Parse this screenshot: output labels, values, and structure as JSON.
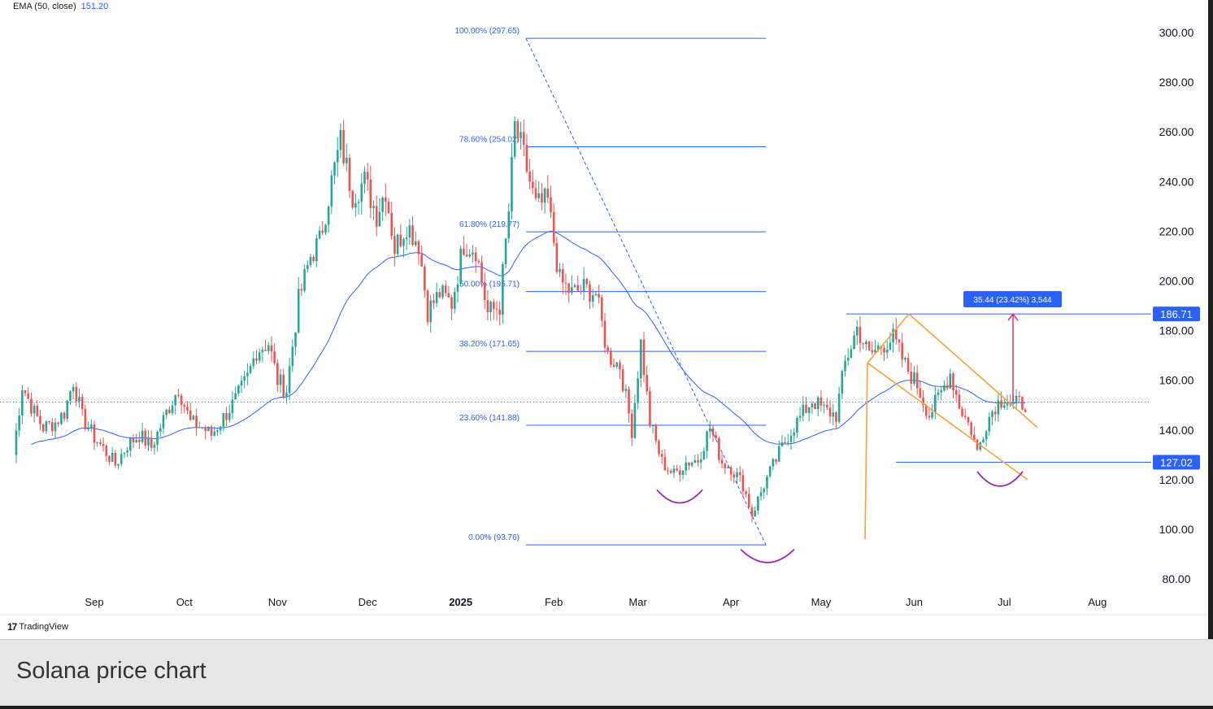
{
  "indicator": {
    "label": "EMA (50, close)",
    "value": "151.20"
  },
  "branding": {
    "logo_mark": "17",
    "logo_text": "TradingView"
  },
  "caption": "Solana price chart",
  "colors": {
    "up": "#26a69a",
    "down": "#ef5350",
    "ema": "#2962ff",
    "fib": "#2962ff",
    "channel": "#f7a23b",
    "arc": "#9c27b0",
    "measure": "#e91e63",
    "label_bg": "#2962ff"
  },
  "chart_data": {
    "type": "candlestick",
    "title": "",
    "y_ticks": [
      "300.00",
      "280.00",
      "260.00",
      "240.00",
      "220.00",
      "200.00",
      "180.00",
      "160.00",
      "140.00",
      "120.00",
      "100.00",
      "80.00"
    ],
    "x_ticks": [
      "Sep",
      "Oct",
      "Nov",
      "Dec",
      "2025",
      "Feb",
      "Mar",
      "Apr",
      "May",
      "Jun",
      "Jul",
      "Aug"
    ],
    "ylim": [
      80,
      300
    ],
    "current_price": 151.2,
    "fib_levels": [
      {
        "label": "100.00% (297.65)",
        "price": 297.65
      },
      {
        "label": "78.60% (254.02)",
        "price": 254.02
      },
      {
        "label": "61.80% (219.77)",
        "price": 219.77
      },
      {
        "label": "50.00% (195.71)",
        "price": 195.71
      },
      {
        "label": "38.20% (171.65)",
        "price": 171.65
      },
      {
        "label": "23.60% (141.88)",
        "price": 141.88
      },
      {
        "label": "0.00% (93.76)",
        "price": 93.76
      }
    ],
    "price_labels": [
      {
        "text": "186.71",
        "price": 186.71
      },
      {
        "text": "127.02",
        "price": 127.02
      }
    ],
    "measure": {
      "text": "35.44 (23.42%) 3,544",
      "from": 151.27,
      "to": 186.71
    },
    "price_path": [
      [
        "2024-08-05",
        130
      ],
      [
        "2024-08-08",
        158
      ],
      [
        "2024-08-12",
        147
      ],
      [
        "2024-08-15",
        141
      ],
      [
        "2024-08-19",
        143
      ],
      [
        "2024-08-22",
        147
      ],
      [
        "2024-08-25",
        160
      ],
      [
        "2024-08-28",
        145
      ],
      [
        "2024-09-01",
        137
      ],
      [
        "2024-09-05",
        131
      ],
      [
        "2024-09-08",
        126
      ],
      [
        "2024-09-12",
        134
      ],
      [
        "2024-09-16",
        138
      ],
      [
        "2024-09-20",
        133
      ],
      [
        "2024-09-25",
        147
      ],
      [
        "2024-09-29",
        157
      ],
      [
        "2024-10-03",
        143
      ],
      [
        "2024-10-07",
        141
      ],
      [
        "2024-10-10",
        138
      ],
      [
        "2024-10-14",
        145
      ],
      [
        "2024-10-18",
        152
      ],
      [
        "2024-10-22",
        161
      ],
      [
        "2024-10-25",
        172
      ],
      [
        "2024-10-29",
        175
      ],
      [
        "2024-11-01",
        160
      ],
      [
        "2024-11-04",
        156
      ],
      [
        "2024-11-08",
        192
      ],
      [
        "2024-11-12",
        210
      ],
      [
        "2024-11-15",
        216
      ],
      [
        "2024-11-19",
        240
      ],
      [
        "2024-11-22",
        256
      ],
      [
        "2024-11-26",
        235
      ],
      [
        "2024-11-30",
        240
      ],
      [
        "2024-12-04",
        227
      ],
      [
        "2024-12-07",
        237
      ],
      [
        "2024-12-10",
        213
      ],
      [
        "2024-12-14",
        223
      ],
      [
        "2024-12-18",
        215
      ],
      [
        "2024-12-21",
        188
      ],
      [
        "2024-12-25",
        195
      ],
      [
        "2024-12-29",
        191
      ],
      [
        "2025-01-02",
        215
      ],
      [
        "2025-01-06",
        213
      ],
      [
        "2025-01-10",
        187
      ],
      [
        "2025-01-14",
        190
      ],
      [
        "2025-01-17",
        228
      ],
      [
        "2025-01-19",
        262
      ],
      [
        "2025-01-22",
        250
      ],
      [
        "2025-01-26",
        230
      ],
      [
        "2025-01-30",
        232
      ],
      [
        "2025-02-03",
        200
      ],
      [
        "2025-02-07",
        195
      ],
      [
        "2025-02-11",
        197
      ],
      [
        "2025-02-15",
        195
      ],
      [
        "2025-02-19",
        170
      ],
      [
        "2025-02-23",
        166
      ],
      [
        "2025-02-27",
        140
      ],
      [
        "2025-03-02",
        175
      ],
      [
        "2025-03-05",
        143
      ],
      [
        "2025-03-09",
        127
      ],
      [
        "2025-03-13",
        122
      ],
      [
        "2025-03-17",
        127
      ],
      [
        "2025-03-21",
        128
      ],
      [
        "2025-03-25",
        141
      ],
      [
        "2025-03-29",
        127
      ],
      [
        "2025-04-01",
        125
      ],
      [
        "2025-04-05",
        118
      ],
      [
        "2025-04-08",
        106
      ],
      [
        "2025-04-12",
        118
      ],
      [
        "2025-04-16",
        128
      ],
      [
        "2025-04-20",
        138
      ],
      [
        "2025-04-24",
        145
      ],
      [
        "2025-04-28",
        152
      ],
      [
        "2025-05-02",
        148
      ],
      [
        "2025-05-06",
        146
      ],
      [
        "2025-05-09",
        167
      ],
      [
        "2025-05-13",
        181
      ],
      [
        "2025-05-17",
        170
      ],
      [
        "2025-05-21",
        174
      ],
      [
        "2025-05-25",
        177
      ],
      [
        "2025-05-29",
        166
      ],
      [
        "2025-06-02",
        158
      ],
      [
        "2025-06-06",
        146
      ],
      [
        "2025-06-10",
        155
      ],
      [
        "2025-06-13",
        163
      ],
      [
        "2025-06-16",
        150
      ],
      [
        "2025-06-20",
        140
      ],
      [
        "2025-06-22",
        131
      ],
      [
        "2025-06-25",
        143
      ],
      [
        "2025-06-28",
        150
      ],
      [
        "2025-07-01",
        153
      ],
      [
        "2025-07-04",
        150
      ],
      [
        "2025-07-08",
        151
      ]
    ]
  }
}
